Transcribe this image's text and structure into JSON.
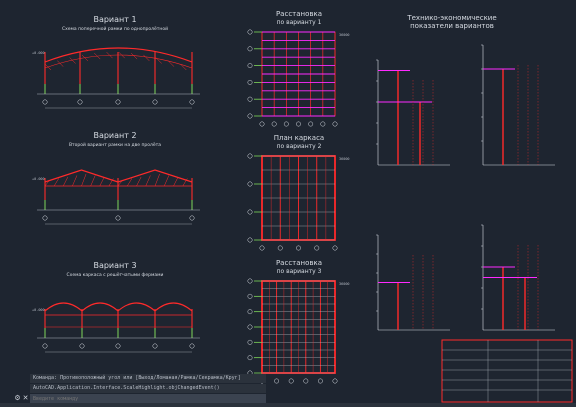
{
  "colors": {
    "background": "#1e2530",
    "frame": "#e02020",
    "member": "#ff2a2a",
    "column_base": "#7fd85a",
    "highlight": "#ff2aff",
    "annotation": "#d8dde4",
    "dim": "#b0b6bf"
  },
  "variants": [
    {
      "title": "Вариант 1",
      "caption": "Схема поперечной рамки по однопролётной"
    },
    {
      "title": "Вариант 2",
      "caption": "Второй вариант рамки на две пролёта"
    },
    {
      "title": "Вариант 3",
      "caption": "Схема каркаса с решётчатыми фермами"
    }
  ],
  "plans": [
    {
      "title": "Расстановка",
      "subtitle": "по варианту 1"
    },
    {
      "title": "План каркаса",
      "subtitle": "по варианту 2"
    },
    {
      "title": "Расстановка",
      "subtitle": "по варианту 3"
    }
  ],
  "charts_header": {
    "title": "Технико-экономические",
    "subtitle": "показатели вариантов"
  },
  "mini_charts": [
    {
      "type": "bar",
      "values": [
        90,
        60
      ]
    },
    {
      "type": "bar",
      "values": [
        80
      ]
    },
    {
      "type": "bar",
      "values": [
        50
      ]
    },
    {
      "type": "bar",
      "values": [
        60,
        50
      ]
    }
  ],
  "command_line": {
    "history": [
      "Команда:  Противоположный угол или [Выход/Ломаная/Рамка/Секрамка/Круг]",
      "AutoCAD.Application.Interface.ScaleHighlight.objChangedEvent()"
    ],
    "placeholder": "Введите команду"
  }
}
